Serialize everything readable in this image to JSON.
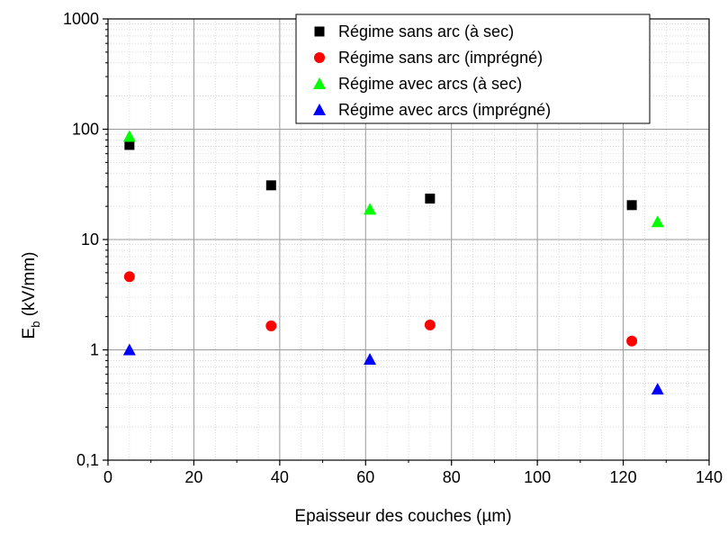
{
  "chart_data": {
    "type": "scatter",
    "xlabel": "Epaisseur des couches (µm)",
    "ylabel_main": "E",
    "ylabel_sub": "b",
    "ylabel_unit": " (kV/mm)",
    "xlim": [
      0,
      140
    ],
    "ylim": [
      0.1,
      1000
    ],
    "yscale": "log",
    "grid": true,
    "legend_position": "top-right",
    "x_ticks": [
      0,
      20,
      40,
      60,
      80,
      100,
      120,
      140
    ],
    "x_tick_labels": [
      "0",
      "20",
      "40",
      "60",
      "80",
      "100",
      "120",
      "140"
    ],
    "y_ticks": [
      0.1,
      1,
      10,
      100,
      1000
    ],
    "y_tick_labels": [
      "0,1",
      "1",
      "10",
      "100",
      "1000"
    ],
    "series": [
      {
        "name": "Régime sans arc (à sec)",
        "marker": "square",
        "color": "#000000",
        "points": [
          [
            5,
            72
          ],
          [
            38,
            31
          ],
          [
            75,
            23.5
          ],
          [
            122,
            20.5
          ]
        ]
      },
      {
        "name": "Régime sans arc (imprégné)",
        "marker": "circle",
        "color": "#ff0000",
        "points": [
          [
            5,
            4.6
          ],
          [
            38,
            1.65
          ],
          [
            75,
            1.68
          ],
          [
            122,
            1.2
          ]
        ]
      },
      {
        "name": "Régime avec arcs (à sec)",
        "marker": "triangle",
        "color": "#00ff00",
        "points": [
          [
            5,
            86
          ],
          [
            61,
            18.8
          ],
          [
            128,
            14.5
          ]
        ]
      },
      {
        "name": "Régime avec arcs (imprégné)",
        "marker": "triangle",
        "color": "#0000ff",
        "points": [
          [
            5,
            1.0
          ],
          [
            61,
            0.82
          ],
          [
            128,
            0.44
          ]
        ]
      }
    ]
  }
}
